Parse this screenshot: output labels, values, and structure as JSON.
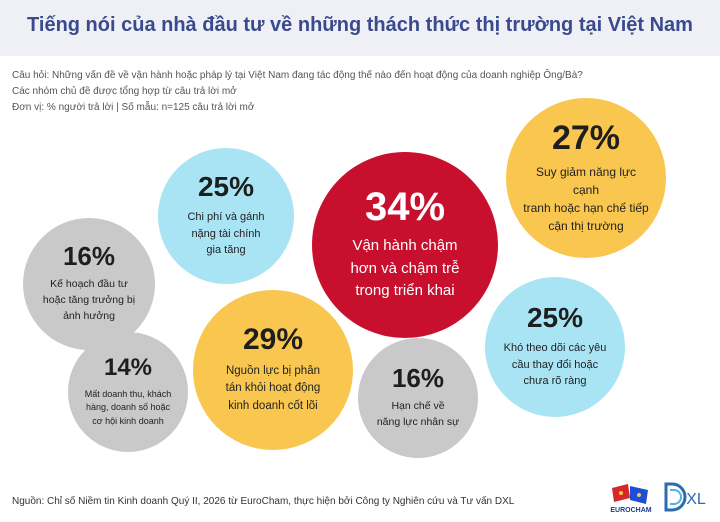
{
  "title": "Tiếng nói của nhà đầu tư về những thách thức thị trường tại Việt Nam",
  "notes": [
    "Câu hỏi: Những vấn đề về vận hành hoặc pháp lý tại Việt Nam đang tác động thế nào đến hoạt động của doanh nghiệp Ông/Bà?",
    "Các nhóm chủ đề được tổng hợp từ câu trả lời mở",
    "Đơn vị: % người trả lời | Số mẫu: n=125 câu trả lời mở"
  ],
  "source": "Nguồn: Chỉ số Niềm tin Kinh doanh Quý II, 2026 từ EuroCham, thực hiện bởi Công ty Nghiên cứu và Tư vấn DXL",
  "logos": {
    "eurocham": "EUROCHAM",
    "dxl": "XL"
  },
  "colors": {
    "red": "#c8102e",
    "yellow": "#f9c74f",
    "blue": "#a8e4f4",
    "grey": "#c9c9c9",
    "title": "#3a4a8c"
  },
  "chart_data": {
    "type": "bubble",
    "categories": [
      "Vận hành chậm hơn và chậm trễ trong triển khai",
      "Suy giảm năng lực cạnh tranh hoặc hạn chế tiếp cận thị trường",
      "Nguồn lực bị phân tán khỏi hoạt động kinh doanh cốt lõi",
      "Chi phí và gánh nặng tài chính gia tăng",
      "Khó theo dõi các yêu cầu thay đổi hoặc chưa rõ ràng",
      "Kế hoạch đầu tư hoặc tăng trưởng bị ảnh hưởng",
      "Hạn chế về năng lực nhân sự",
      "Mất doanh thu, khách hàng, doanh số hoặc cơ hội kinh doanh"
    ],
    "values": [
      34,
      27,
      29,
      25,
      25,
      16,
      16,
      14
    ],
    "labels": [
      "34%",
      "27%",
      "29%",
      "25%",
      "25%",
      "16%",
      "16%",
      "14%"
    ],
    "colors": [
      "red",
      "yellow",
      "yellow",
      "blue",
      "blue",
      "grey",
      "grey",
      "grey"
    ]
  }
}
